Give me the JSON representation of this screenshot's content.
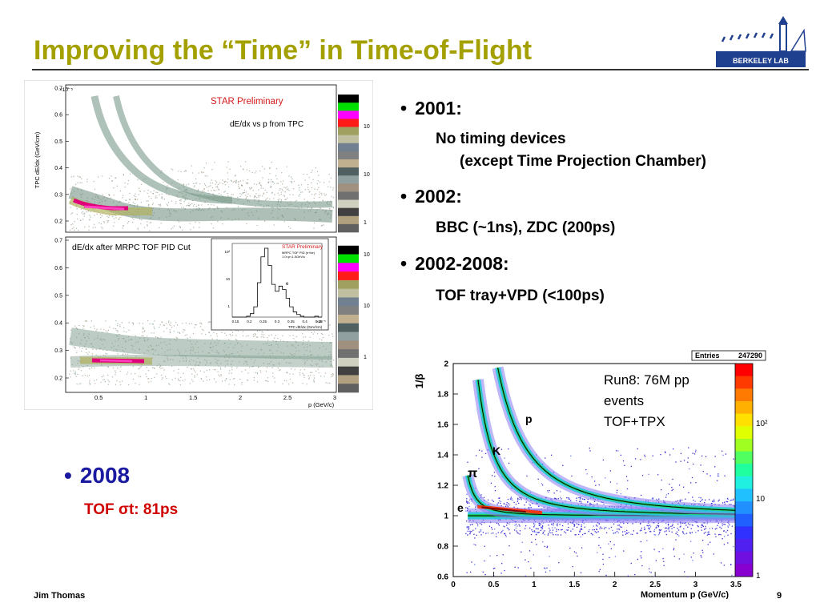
{
  "slide": {
    "title": "Improving the “Time” in Time-of-Flight",
    "logo_text": "BERKELEY LAB",
    "footer_author": "Jim Thomas",
    "page_number": "9"
  },
  "bullets": [
    {
      "heading": "2001:",
      "lines": [
        "No timing devices",
        "(except Time Projection Chamber)"
      ]
    },
    {
      "heading": "2002:",
      "lines": [
        "BBC (~1ns), ZDC (200ps)"
      ]
    },
    {
      "heading": "2002-2008:",
      "lines": [
        "TOF tray+VPD (<100ps)"
      ]
    }
  ],
  "bullet_2008": {
    "heading": "2008",
    "sub_prefix": "TOF ",
    "sub_sigma": "σ",
    "sub_suffix": "t: 81ps"
  },
  "colors": {
    "title": "#a3a000",
    "bullet_2008": "#1a1aa0",
    "sub_2008": "#d00000"
  },
  "chart_data": [
    {
      "type": "heatmap",
      "panel": "top",
      "ylabel": "TPC dE/dx (GeV/cm)",
      "yexp": "×10⁻⁵",
      "yticks": [
        "0.7",
        "0.6",
        "0.5",
        "0.4",
        "0.3",
        "0.2"
      ],
      "annotations": [
        "STAR Preliminary",
        "dE/dx vs p from TPC"
      ],
      "zticks": [
        "10",
        "10",
        "1"
      ]
    },
    {
      "type": "heatmap",
      "panel": "bottom",
      "xlabel": "p (GeV/c)",
      "xticks": [
        "0.5",
        "1",
        "1.5",
        "2",
        "2.5",
        "3"
      ],
      "yticks": [
        "0.7",
        "0.6",
        "0.5",
        "0.4",
        "0.3",
        "0.2"
      ],
      "annotations": [
        "dE/dx after MRPC TOF PID Cut"
      ],
      "zticks": [
        "10",
        "10",
        "1"
      ],
      "inset": {
        "annotation": "STAR Preliminary",
        "sub1": "MRPC TOF PID (e+ke)",
        "sub2": "1.0<p<1.5GeV/c",
        "particle": "e",
        "xlabel": "TPC dE/dx (GeV/cm)",
        "xexp": "×10⁻⁵",
        "xticks": [
          "0.15",
          "0.2",
          "0.25",
          "0.3",
          "0.35",
          "0.4",
          "0.45"
        ],
        "yticks": [
          "10²",
          "10",
          "1"
        ]
      }
    },
    {
      "type": "heatmap",
      "panel": "right",
      "xlabel": "Momentum p (GeV/c)",
      "ylabel": "1/β",
      "xlim": [
        0,
        3.5
      ],
      "ylim": [
        0.6,
        2
      ],
      "xticks": [
        "0",
        "0.5",
        "1",
        "1.5",
        "2",
        "2.5",
        "3",
        "3.5"
      ],
      "yticks": [
        "2",
        "1.8",
        "1.6",
        "1.4",
        "1.2",
        "1",
        "0.8",
        "0.6"
      ],
      "stats": {
        "label": "Entries",
        "value": "247290"
      },
      "run_text": [
        "Run8: 76M pp",
        "events",
        "TOF+TPX"
      ],
      "particles": [
        "p",
        "K",
        "π",
        "e"
      ],
      "zticks": [
        "10²",
        "10",
        "1"
      ],
      "bands": [
        {
          "particle": "e",
          "mass": 0.000511
        },
        {
          "particle": "π",
          "mass": 0.1396
        },
        {
          "particle": "K",
          "mass": 0.4937
        },
        {
          "particle": "p",
          "mass": 0.9383
        }
      ]
    }
  ]
}
